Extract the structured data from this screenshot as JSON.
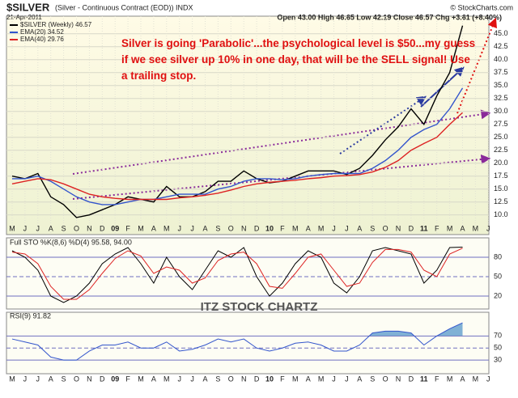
{
  "chart_data": [
    {
      "type": "line",
      "title": "$SILVER",
      "subtitle": "(Silver - Continuous Contract (EOD)) INDX",
      "date": "21-Apr-2011",
      "source": "© StockCharts.com",
      "quote": "Open 43.00 High 46.65 Low 42.19 Close 46.57 Chg +3.61 (+8.40%)",
      "annotation": "Silver is going 'Parabolic'...the psychological level is $50...my guess if we see silver up 10% in one day, that will be the SELL signal! Use a trailing stop.",
      "categories": [
        "M",
        "J",
        "J",
        "A",
        "S",
        "O",
        "N",
        "D",
        "09",
        "F",
        "M",
        "A",
        "M",
        "J",
        "J",
        "A",
        "S",
        "O",
        "N",
        "D",
        "10",
        "F",
        "M",
        "A",
        "M",
        "J",
        "J",
        "A",
        "S",
        "O",
        "N",
        "D",
        "11",
        "F",
        "M",
        "A",
        "M",
        "J"
      ],
      "series": [
        {
          "name": "$SILVER (Weekly) 46.57",
          "color": "#000000",
          "values": [
            17.5,
            17,
            18,
            13.5,
            12,
            9.5,
            10,
            11,
            12,
            13.5,
            13,
            12.5,
            15.5,
            13.5,
            13.5,
            14.5,
            16.5,
            16.5,
            18.5,
            17,
            16.2,
            16.5,
            17.5,
            18.5,
            18.5,
            18.5,
            17.8,
            19,
            21.5,
            24.5,
            27,
            30.5,
            27.5,
            33,
            37.5,
            46.57,
            null,
            null
          ]
        },
        {
          "name": "EMA(20) 34.52",
          "color": "#3355cc",
          "values": [
            17,
            17,
            17.5,
            16.5,
            15,
            13.5,
            12.5,
            12,
            12,
            12.5,
            13,
            13,
            13.5,
            14,
            14,
            14,
            15,
            15.5,
            16.5,
            17,
            17,
            16.8,
            17,
            17.5,
            17.8,
            18,
            18,
            18,
            19,
            20.5,
            22.5,
            25,
            26.5,
            27.5,
            30.5,
            34.52,
            null,
            null
          ]
        },
        {
          "name": "EMA(40) 29.76",
          "color": "#dd2222",
          "values": [
            16,
            16.5,
            17,
            16.8,
            16,
            15,
            14,
            13.5,
            13.2,
            13,
            13,
            13,
            13,
            13.3,
            13.5,
            13.8,
            14.2,
            14.8,
            15.5,
            16,
            16.3,
            16.5,
            16.7,
            17,
            17.2,
            17.5,
            17.6,
            17.8,
            18.3,
            19.2,
            20.5,
            22.5,
            23.8,
            25,
            27.5,
            29.76,
            null,
            null
          ]
        }
      ],
      "ylim": [
        6.2,
        48.4
      ],
      "yticks": [
        {
          "value": 10,
          "label": "10.0"
        },
        {
          "value": 12.5,
          "label": "12.5"
        },
        {
          "value": 15,
          "label": "15.0"
        },
        {
          "value": 17.5,
          "label": "17.5"
        },
        {
          "value": 20,
          "label": "20.0"
        },
        {
          "value": 22.5,
          "label": "22.5"
        },
        {
          "value": 25,
          "label": "25.0"
        },
        {
          "value": 27.5,
          "label": "27.5"
        },
        {
          "value": 30,
          "label": "30.0"
        },
        {
          "value": 32.5,
          "label": "32.5"
        },
        {
          "value": 35,
          "label": "35.0"
        },
        {
          "value": 37.5,
          "label": "37.5"
        },
        {
          "value": 40,
          "label": "40.0"
        },
        {
          "value": 42.5,
          "label": "42.5"
        },
        {
          "value": 45,
          "label": "45.0"
        }
      ],
      "grid": true
    },
    {
      "type": "line",
      "title": "Full STO %K(8,6) %D(4) 95.58, 94.00",
      "watermark": "ITZ STOCK CHARTZ",
      "series": [
        {
          "color": "#000000",
          "values": [
            90,
            80,
            60,
            20,
            10,
            20,
            40,
            70,
            85,
            95,
            70,
            40,
            80,
            50,
            30,
            60,
            90,
            80,
            95,
            50,
            20,
            40,
            70,
            90,
            80,
            40,
            25,
            50,
            90,
            95,
            90,
            85,
            40,
            60,
            95,
            95.58,
            null,
            null
          ]
        },
        {
          "color": "#dd2222",
          "values": [
            88,
            85,
            70,
            35,
            15,
            15,
            30,
            55,
            78,
            90,
            82,
            55,
            65,
            60,
            40,
            48,
            75,
            85,
            88,
            70,
            35,
            32,
            55,
            80,
            85,
            60,
            35,
            40,
            72,
            92,
            92,
            88,
            60,
            50,
            85,
            94,
            null,
            null
          ]
        }
      ],
      "ylim": [
        0,
        100
      ],
      "yticks": [
        20,
        50,
        80
      ],
      "grid": true
    },
    {
      "type": "line",
      "title": "RSI(9) 91.82",
      "series": [
        {
          "color": "#3355cc",
          "values": [
            65,
            60,
            55,
            35,
            30,
            30,
            45,
            55,
            55,
            60,
            50,
            50,
            60,
            45,
            48,
            55,
            65,
            60,
            65,
            50,
            45,
            50,
            58,
            60,
            55,
            45,
            45,
            55,
            75,
            78,
            78,
            75,
            55,
            70,
            82,
            91.82,
            null,
            null
          ]
        }
      ],
      "ylim": [
        10,
        100
      ],
      "yticks": [
        30,
        50,
        70
      ],
      "grid": true
    }
  ]
}
